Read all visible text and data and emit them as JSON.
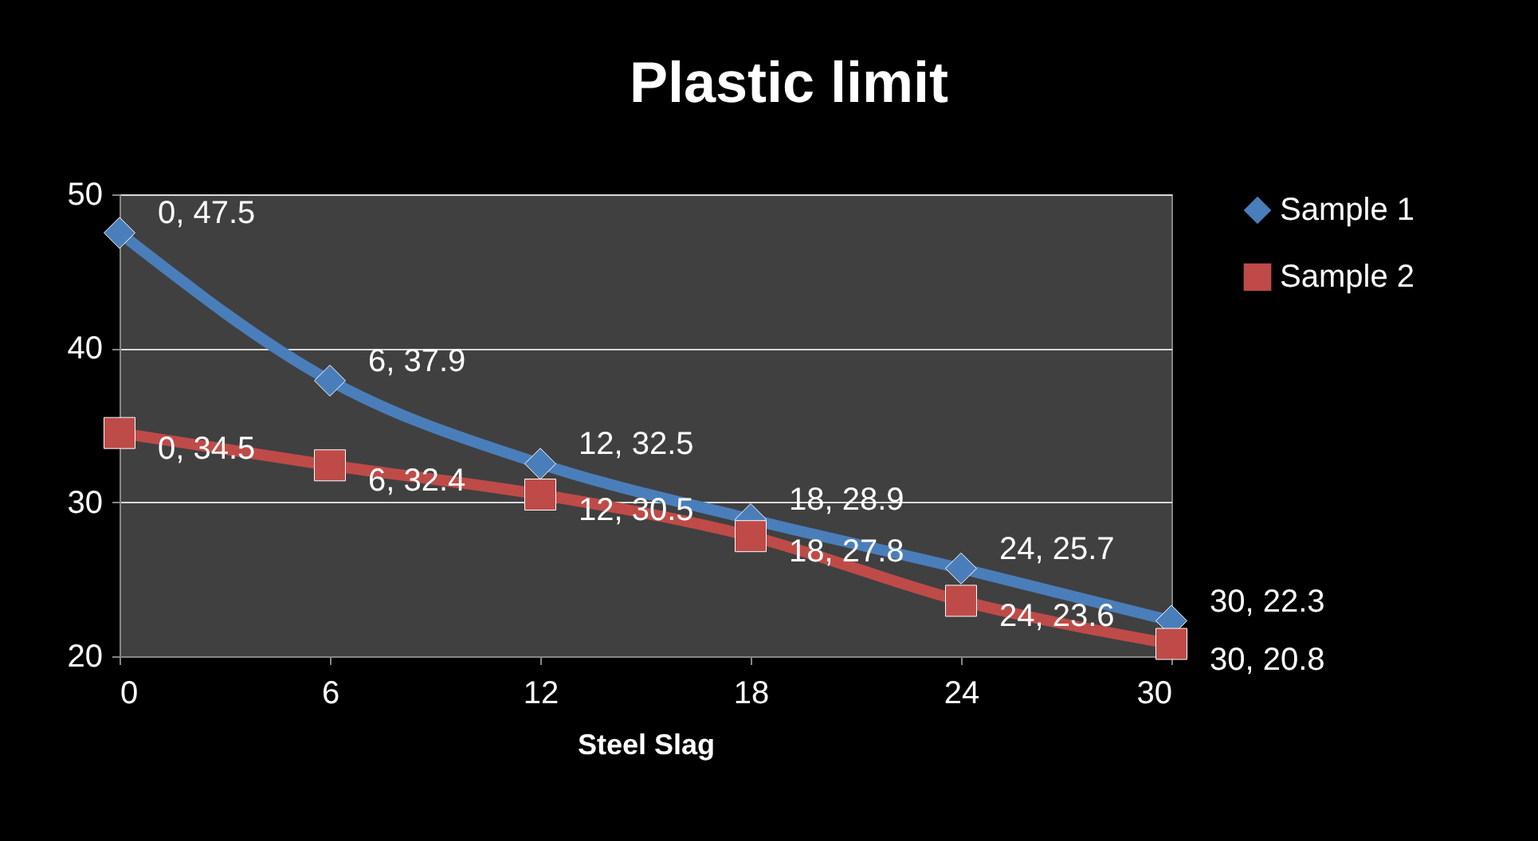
{
  "chart_data": {
    "type": "line",
    "title": "Plastic limit",
    "xlabel": "Steel Slag",
    "x": [
      0,
      6,
      12,
      18,
      24,
      30
    ],
    "series": [
      {
        "name": "Sample 1",
        "color": "#4a7ebb",
        "marker": "diamond",
        "values": [
          47.5,
          37.9,
          32.5,
          28.9,
          25.7,
          22.3
        ],
        "value_labels": [
          "0, 47.5",
          "6, 37.9",
          "12, 32.5",
          "18, 28.9",
          "24, 25.7",
          "30, 22.3"
        ]
      },
      {
        "name": "Sample 2",
        "color": "#be4b48",
        "marker": "square",
        "values": [
          34.5,
          32.4,
          30.5,
          27.8,
          23.6,
          20.8
        ],
        "value_labels": [
          "0, 34.5",
          "6, 32.4",
          "12, 30.5",
          "18, 27.8",
          "24, 23.6",
          "30, 20.8"
        ]
      }
    ],
    "xlim": [
      0,
      30
    ],
    "xticks": [
      0,
      6,
      12,
      18,
      24,
      30
    ],
    "ylim": [
      20,
      50
    ],
    "yticks": [
      20,
      30,
      40,
      50
    ],
    "grid": "y",
    "legend": "right",
    "line_style": "solid"
  }
}
